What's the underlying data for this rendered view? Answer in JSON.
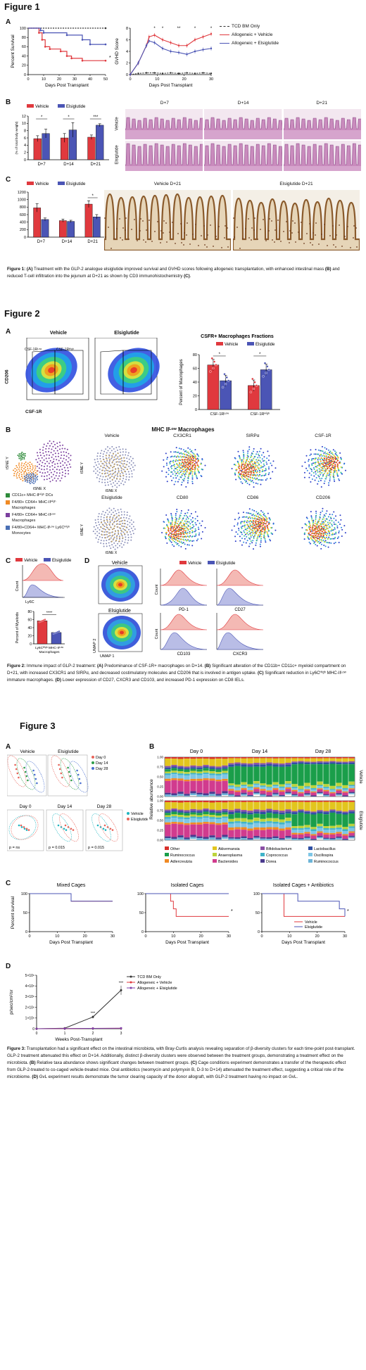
{
  "figure1": {
    "title": "Figure 1",
    "panelA": {
      "letter": "A",
      "survival": {
        "ylabel": "Percent Survival",
        "xlabel": "Days Post Transplant",
        "yticks": [
          "0",
          "20",
          "40",
          "60",
          "80",
          "100"
        ],
        "xticks": [
          "0",
          "10",
          "20",
          "30",
          "40",
          "50"
        ],
        "sig": "*"
      },
      "gvhd": {
        "ylabel": "GVHD Score",
        "xlabel": "Days Post Transplant",
        "yticks": [
          "0",
          "2",
          "4",
          "6",
          "8"
        ],
        "xticks": [
          "0",
          "10",
          "20",
          "30"
        ],
        "sig": [
          "*",
          "*",
          "**",
          "*",
          "*"
        ]
      },
      "legend": [
        "TCD BM Only",
        "Allogeneic + Vehicle",
        "Allogeneic + Elsiglutide"
      ],
      "colors": {
        "tcd": "#333333",
        "vehicle": "#e0393e",
        "elsiglutide": "#4b55b5"
      }
    },
    "panelB": {
      "letter": "B",
      "legend": [
        "Vehicle",
        "Elsiglutide"
      ],
      "ylabel": "Small Bowel Weight",
      "ylabel2": "(% of total body weight)",
      "yticks": [
        "0",
        "2",
        "4",
        "6",
        "8",
        "10",
        "12"
      ],
      "categories": [
        "D+7",
        "D+14",
        "D+21"
      ],
      "sig": [
        "*",
        "*",
        "***"
      ],
      "histology_cols": [
        "D+7",
        "D+14",
        "D+21"
      ],
      "histology_rows": [
        "Vehicle",
        "Elsiglutide"
      ]
    },
    "panelC": {
      "letter": "C",
      "legend": [
        "Vehicle",
        "Elsiglutide"
      ],
      "ylabel": "CD3⁺ Cells/mm²",
      "yticks": [
        "0",
        "200",
        "400",
        "600",
        "800",
        "1000",
        "1200"
      ],
      "categories": [
        "D+7",
        "D+14",
        "D+21"
      ],
      "sig": "*",
      "ihc_labels": [
        "Vehicle D+21",
        "Elsiglutide D+21"
      ]
    },
    "caption": {
      "bold1": "Figure 1: (A)",
      "t1": " Treatment with the GLP-2 analogue elsiglutide improved survival and GVHD scores following allogeneic transplantation, with enhanced intestinal mass ",
      "bold2": "(B)",
      "t2": " and reduced T-cell infiltration into the jejunum at D+21 as shown by CD3 immunohistochemistry ",
      "bold3": "(C)",
      "t3": "."
    }
  },
  "figure2": {
    "title": "Figure 2",
    "panelA": {
      "letter": "A",
      "flow_titles": [
        "Vehicle",
        "Elsiglutide"
      ],
      "gate_low": "CSF-1Rᴸᵒʷ",
      "gate_high": "CSF-1Rᴴⁱᵍʰ",
      "xlabel": "CSF-1R",
      "ylabel": "CD206",
      "bar_title": "CSFR+ Macrophages Fractions",
      "legend": [
        "Vehicle",
        "Elsiglutide"
      ],
      "bar_ylabel": "Percent of Macrophages",
      "yticks": [
        "0",
        "20",
        "40",
        "60",
        "80"
      ],
      "categories": [
        "CSF-1Rᴸᵒʷ",
        "CSF-1Rᴴⁱᵍʰ"
      ],
      "sig": [
        "*",
        "*"
      ]
    },
    "panelB": {
      "letter": "B",
      "title": "MHC IIᴸᵒʷ Macrophages",
      "tsne_y": "tSNE Y",
      "tsne_x": "tSNE X",
      "legend": [
        "CD11c+ MHC-IIᴴⁱᵍʰ DCs",
        "F4/80+ CD64+ MHC-IIᴴⁱᵍʰ Macrophages",
        "F4/80+ CD64+ MHC-IIᴸᵒʷ Macrophages",
        "F4/80+CD64+ MHC-IIᴸᵒʷ Ly6Cᴴⁱᵍʰ Monocytes"
      ],
      "legend_colors": [
        "#2e8b3a",
        "#f08a24",
        "#7b3f9e",
        "#4a6fb5"
      ],
      "row1": [
        "Vehicle",
        "CX3CR1",
        "SIRPα",
        "CSF-1R"
      ],
      "row2": [
        "Elsiglutide",
        "CD80",
        "CD86",
        "CD206"
      ]
    },
    "panelC": {
      "letter": "C",
      "legend": [
        "Vehicle",
        "Elsiglutide"
      ],
      "hist_ylabel": "Count",
      "hist_xlabel": "Ly6C",
      "bar_ylabel": "Percent of Myeloids",
      "yticks": [
        "0",
        "20",
        "40",
        "60",
        "80"
      ],
      "xlabel1": "Ly6Cᴴⁱᵍʰ MHC-IIᴸᵒʷ",
      "xlabel2": "Macrophages",
      "sig": "****"
    },
    "panelD": {
      "letter": "D",
      "umap_titles": [
        "Vehicle",
        "Elsiglutide"
      ],
      "umap_x": "UMAP 1",
      "umap_y": "UMAP 2",
      "legend": [
        "Vehicle",
        "Elsiglutide"
      ],
      "hist_ylabel": "Count",
      "markers": [
        "PD-1",
        "CD27",
        "CD103",
        "CXCR3"
      ]
    },
    "caption": {
      "bold1": "Figure 2:",
      "t1": " Immune impact of GLP-2 treatment: ",
      "bold2": "(A)",
      "t2": " Predominance of CSF-1R+ macrophages on D+14. ",
      "bold3": "(B)",
      "t3": " Significant alteration of the CD11b+ CD11c+ myeloid compartment on D+21, with increased CX3CR1 and SIRPα, and decreased costimulatory molecules and CD206 that is involved in antigen uptake. ",
      "bold4": "(C)",
      "t4": " Significant reduction in Ly6Cᴴⁱᵍʰ MHC-IIᴸᵒʷ immature macrophages. ",
      "bold5": "(D)",
      "t5": " Lower expression of CD27, CXCR3 and CD103, and increased PD-1 expression on CD8 IELs."
    }
  },
  "figure3": {
    "title": "Figure 3",
    "panelA": {
      "letter": "A",
      "top_titles": [
        "Vehicle",
        "Elsiglutide"
      ],
      "top_legend": [
        "Day 0",
        "Day 14",
        "Day 28"
      ],
      "top_colors": [
        "#e8645a",
        "#2e9e4a",
        "#4a6fd0"
      ],
      "bottom_titles": [
        "Day 0",
        "Day 14",
        "Day 28"
      ],
      "bottom_legend": [
        "Vehicle",
        "Elsiglutide"
      ],
      "bottom_colors": [
        "#1fb5c0",
        "#e8645a"
      ],
      "pvals": [
        "p = ns",
        "p = 0.015",
        "p = 0.015"
      ]
    },
    "panelB": {
      "letter": "B",
      "day_titles": [
        "Day 0",
        "Day 14",
        "Day 28"
      ],
      "ylabel": "Relative abundance",
      "yticks": [
        "0.00",
        "0.25",
        "0.50",
        "0.75",
        "1.00"
      ],
      "side_labels": [
        "Vehicle",
        "Elsiglutide"
      ],
      "taxa": [
        "Other",
        "Akkermansia",
        "Bifidobacterium",
        "Lactobacillus",
        "Ruminococcus",
        "Anaeroplasma",
        "Coprococcus",
        "Oscillospira",
        "Adlercreutzia",
        "Bacteroides",
        "Dorea",
        "Ruminococcus"
      ],
      "taxa_colors": [
        "#d8312b",
        "#e2c51d",
        "#8b4fa5",
        "#2e4fa3",
        "#1a9e4a",
        "#bcd33b",
        "#3fb3c9",
        "#7ec6e6",
        "#f08a24",
        "#d13b8e",
        "#4a3a8e",
        "#6db5d8"
      ]
    },
    "panelC": {
      "letter": "C",
      "titles": [
        "Mixed Cages",
        "Isolated Cages",
        "Isolated Cages + Antibiotics"
      ],
      "ylabel": "Percent survival",
      "xlabel": "Days Post Transplant",
      "yticks": [
        "0",
        "50",
        "100"
      ],
      "xticks": [
        "0",
        "10",
        "20",
        "30"
      ],
      "legend": [
        "Vehicle",
        "Elsiglutide"
      ],
      "sig": "*"
    },
    "panelD": {
      "letter": "D",
      "ylabel": "p/sec/cm²/sr",
      "xlabel": "Weeks Post-Transplant",
      "yticks": [
        "0",
        "1×10⁶",
        "2×10⁶",
        "3×10⁶",
        "4×10⁶",
        "5×10⁶"
      ],
      "xticks": [
        "0",
        "1",
        "2",
        "3"
      ],
      "legend": [
        "TCD BM Only",
        "Allogeneic + Vehicle",
        "Allogeneic + Elsiglutide"
      ],
      "sig": [
        "***",
        "***"
      ]
    },
    "caption": {
      "bold1": "Figure 3:",
      "t1": " Transplantation had a significant effect on the intestinal microbiota, with Bray-Curtis analysis revealing separation of β-diversity clusters for each time-point post-transplant. GLP-2 treatment attenuated this effect on D+14. Additionally, distinct β-diversity clusters were observed between the treatment groups, demonstrating a treatment effect on the microbiota. ",
      "bold2": "(B)",
      "t2": " Relative taxa abundance shows significant changes between treatment groups. ",
      "bold3": "(C)",
      "t3": " Cage conditions experiment demonstrates a transfer of the therapeutic effect from GLP-2-treated to co-caged vehicle-treated mice. Oral antibiotics (neomycin and polymyxin B, D-3 to D+14) attenuated the treatment effect, suggesting a critical role of the microbiome. ",
      "bold4": "(D)",
      "t4": " GvL experiment results demonstrate the tumor clearing capacity of the donor allograft, with GLP-2 treatment having no impact on GvL."
    }
  },
  "chart_data": [
    {
      "type": "line",
      "id": "fig1A-survival",
      "xlabel": "Days Post Transplant",
      "ylabel": "Percent Survival",
      "xlim": [
        0,
        50
      ],
      "ylim": [
        0,
        100
      ],
      "series": [
        {
          "name": "TCD BM Only",
          "x": [
            0,
            50
          ],
          "y": [
            100,
            100
          ]
        },
        {
          "name": "Allogeneic + Vehicle",
          "x": [
            0,
            7,
            9,
            11,
            14,
            21,
            25,
            28,
            35,
            50
          ],
          "y": [
            100,
            90,
            75,
            60,
            55,
            50,
            40,
            35,
            30,
            30
          ]
        },
        {
          "name": "Allogeneic + Elsiglutide",
          "x": [
            0,
            8,
            10,
            25,
            35,
            40,
            50
          ],
          "y": [
            100,
            95,
            90,
            85,
            75,
            65,
            65
          ]
        }
      ]
    },
    {
      "type": "line",
      "id": "fig1A-gvhd",
      "xlabel": "Days Post Transplant",
      "ylabel": "GVHD Score",
      "xlim": [
        0,
        30
      ],
      "ylim": [
        0,
        8
      ],
      "series": [
        {
          "name": "TCD BM Only",
          "x": [
            0,
            3,
            6,
            9,
            12,
            15,
            18,
            21,
            24,
            27,
            30
          ],
          "y": [
            0,
            0.2,
            0.3,
            0.3,
            0.2,
            0.3,
            0.2,
            0.3,
            0.2,
            0.3,
            0.2
          ]
        },
        {
          "name": "Allogeneic + Vehicle",
          "x": [
            0,
            3,
            6,
            7,
            9,
            12,
            15,
            18,
            21,
            24,
            27,
            30
          ],
          "y": [
            0,
            2,
            5,
            6.5,
            6.8,
            6,
            5.5,
            5,
            5,
            6,
            6.5,
            7
          ]
        },
        {
          "name": "Allogeneic + Elsiglutide",
          "x": [
            0,
            3,
            6,
            7,
            9,
            12,
            15,
            18,
            21,
            24,
            27,
            30
          ],
          "y": [
            0,
            2,
            5,
            5.8,
            5.5,
            4.5,
            4,
            3.8,
            3.5,
            4,
            4.3,
            4.5
          ]
        }
      ]
    },
    {
      "type": "bar",
      "id": "fig1B-bowel-weight",
      "categories": [
        "D+7",
        "D+14",
        "D+21"
      ],
      "ylabel": "Small Bowel Weight (% of total body weight)",
      "ylim": [
        0,
        12
      ],
      "series": [
        {
          "name": "Vehicle",
          "values": [
            5.8,
            6.0,
            6.2
          ],
          "err": [
            0.8,
            1.2,
            0.6
          ]
        },
        {
          "name": "Elsiglutide",
          "values": [
            7.2,
            8.2,
            9.5
          ],
          "err": [
            1.2,
            2.0,
            0.4
          ]
        }
      ]
    },
    {
      "type": "bar",
      "id": "fig1C-cd3",
      "categories": [
        "D+7",
        "D+14",
        "D+21"
      ],
      "ylabel": "CD3⁺ Cells/mm²",
      "ylim": [
        0,
        1200
      ],
      "series": [
        {
          "name": "Vehicle",
          "values": [
            780,
            440,
            880
          ],
          "err": [
            110,
            40,
            90
          ]
        },
        {
          "name": "Elsiglutide",
          "values": [
            470,
            420,
            540
          ],
          "err": [
            40,
            30,
            60
          ]
        }
      ]
    },
    {
      "type": "bar",
      "id": "fig2A-csfr",
      "title": "CSFR+ Macrophages Fractions",
      "categories": [
        "CSF-1R Low",
        "CSF-1R High"
      ],
      "ylabel": "Percent of Macrophages",
      "ylim": [
        0,
        80
      ],
      "series": [
        {
          "name": "Vehicle",
          "values": [
            65,
            35
          ],
          "err": [
            8,
            8
          ]
        },
        {
          "name": "Elsiglutide",
          "values": [
            42,
            58
          ],
          "err": [
            8,
            8
          ]
        }
      ]
    },
    {
      "type": "bar",
      "id": "fig2C-myeloids",
      "categories": [
        "Ly6C High MHC-II Low Macrophages"
      ],
      "ylabel": "Percent of Myeloids",
      "ylim": [
        0,
        80
      ],
      "series": [
        {
          "name": "Vehicle",
          "values": [
            57
          ],
          "err": [
            4
          ]
        },
        {
          "name": "Elsiglutide",
          "values": [
            28
          ],
          "err": [
            3
          ]
        }
      ]
    },
    {
      "type": "area",
      "id": "fig3B-taxa",
      "ylabel": "Relative abundance",
      "ylim": [
        0,
        1
      ]
    },
    {
      "type": "line",
      "id": "fig3C-survival",
      "ylabel": "Percent survival",
      "xlabel": "Days Post Transplant",
      "xlim": [
        0,
        30
      ],
      "ylim": [
        0,
        100
      ],
      "panels": [
        {
          "title": "Mixed Cages",
          "series": [
            {
              "name": "Vehicle",
              "x": [
                0,
                15,
                30
              ],
              "y": [
                100,
                80,
                80
              ]
            },
            {
              "name": "Elsiglutide",
              "x": [
                0,
                15,
                30
              ],
              "y": [
                100,
                80,
                80
              ]
            }
          ]
        },
        {
          "title": "Isolated Cages",
          "series": [
            {
              "name": "Vehicle",
              "x": [
                0,
                9,
                10,
                11,
                30
              ],
              "y": [
                100,
                80,
                60,
                40,
                40
              ]
            },
            {
              "name": "Elsiglutide",
              "x": [
                0,
                30
              ],
              "y": [
                100,
                100
              ]
            }
          ]
        },
        {
          "title": "Isolated Cages + Antibiotics",
          "series": [
            {
              "name": "Vehicle",
              "x": [
                0,
                8,
                30
              ],
              "y": [
                100,
                40,
                40
              ]
            },
            {
              "name": "Elsiglutide",
              "x": [
                0,
                13,
                28,
                30
              ],
              "y": [
                100,
                80,
                60,
                40
              ]
            }
          ]
        }
      ]
    },
    {
      "type": "line",
      "id": "fig3D-gvl",
      "xlabel": "Weeks Post-Transplant",
      "ylabel": "p/sec/cm²/sr",
      "xlim": [
        0,
        3
      ],
      "ylim": [
        0,
        5000000
      ],
      "series": [
        {
          "name": "TCD BM Only",
          "x": [
            0,
            1,
            2,
            3
          ],
          "y": [
            0,
            50000,
            1100000,
            3600000
          ]
        },
        {
          "name": "Allogeneic + Vehicle",
          "x": [
            0,
            1,
            2,
            3
          ],
          "y": [
            0,
            20000,
            30000,
            40000
          ]
        },
        {
          "name": "Allogeneic + Elsiglutide",
          "x": [
            0,
            1,
            2,
            3
          ],
          "y": [
            0,
            20000,
            30000,
            50000
          ]
        }
      ]
    }
  ]
}
